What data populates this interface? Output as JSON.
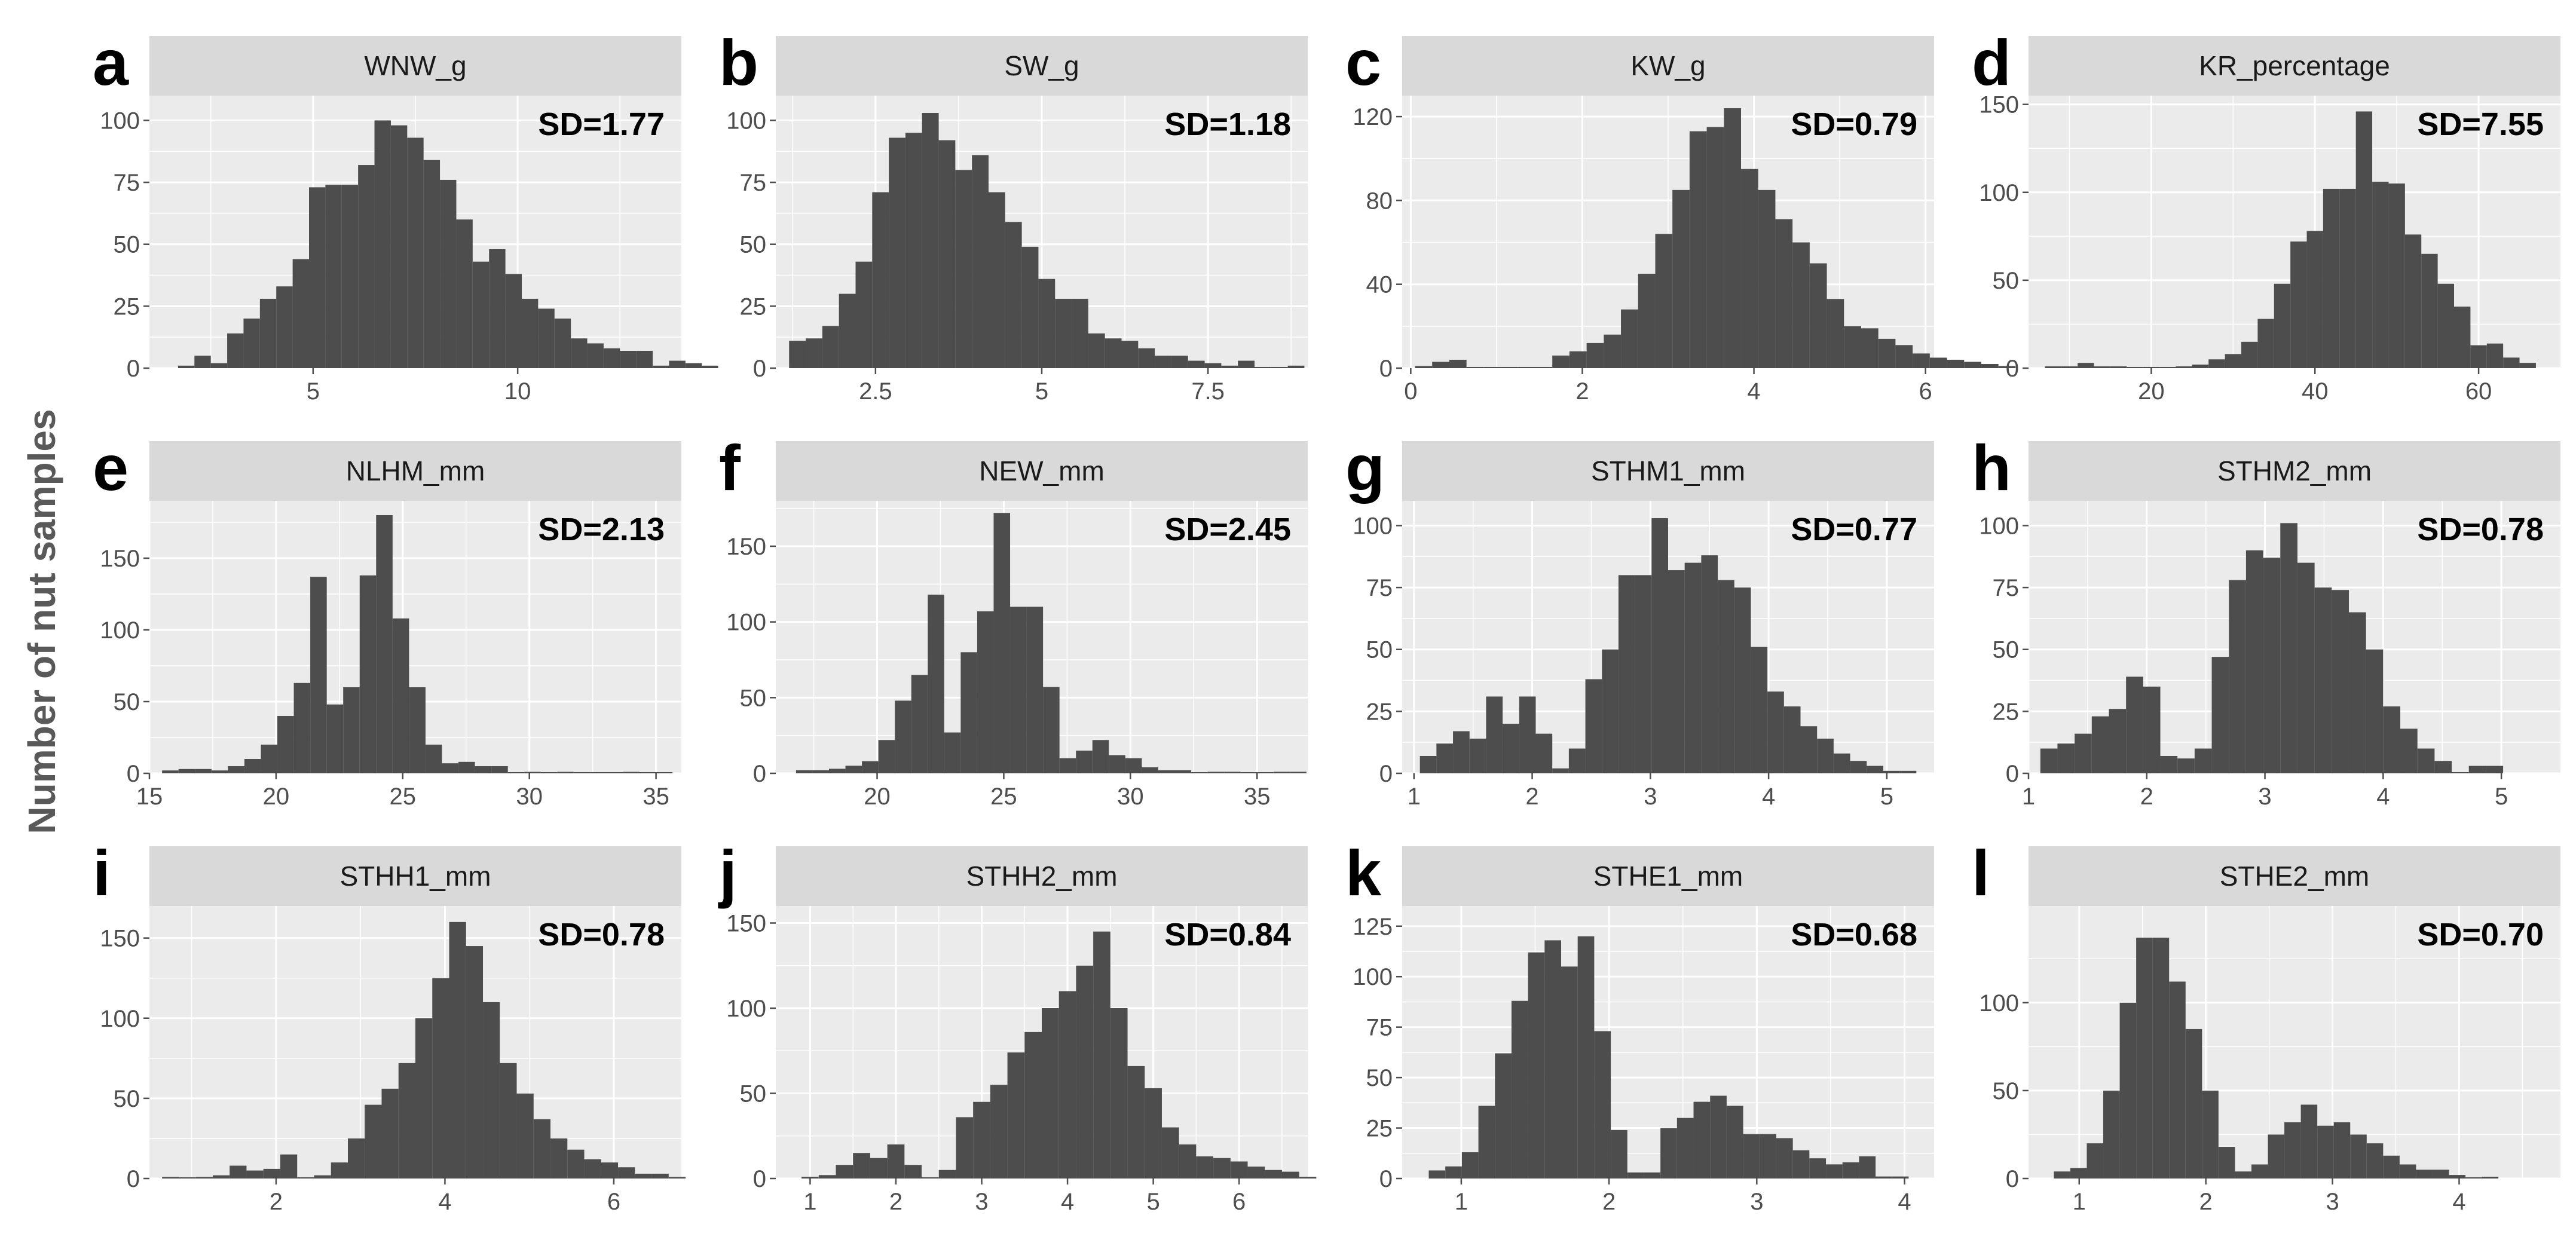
{
  "figure": {
    "ylabel": "Number of nut samples"
  },
  "colors": {
    "panel_bg": "#ebebeb",
    "strip_bg": "#d9d9d9",
    "bar": "#4d4d4d",
    "grid": "#ffffff",
    "tick": "#4d4d4d"
  },
  "chart_data": [
    {
      "type": "bar",
      "letter": "a",
      "title": "WNW_g",
      "sd_label": "SD=1.77",
      "xlim": [
        1,
        14
      ],
      "ylim": [
        0,
        110
      ],
      "xticks": [
        5,
        10
      ],
      "yticks": [
        0,
        25,
        50,
        75,
        100
      ],
      "bin_start": 1.7,
      "bin_width": 0.4,
      "counts": [
        1,
        5,
        2,
        14,
        20,
        28,
        33,
        44,
        73,
        74,
        74,
        82,
        100,
        98,
        93,
        84,
        76,
        60,
        43,
        48,
        38,
        28,
        24,
        20,
        12,
        10,
        8,
        7,
        7,
        1,
        3,
        2,
        1
      ]
    },
    {
      "type": "bar",
      "letter": "b",
      "title": "SW_g",
      "sd_label": "SD=1.18",
      "xlim": [
        1,
        9
      ],
      "ylim": [
        0,
        110
      ],
      "xticks": [
        2.5,
        5.0,
        7.5
      ],
      "yticks": [
        0,
        25,
        50,
        75,
        100
      ],
      "bin_start": 1.2,
      "bin_width": 0.25,
      "counts": [
        11,
        12,
        17,
        30,
        43,
        71,
        93,
        95,
        103,
        92,
        80,
        86,
        71,
        59,
        49,
        36,
        28,
        28,
        14,
        12,
        11,
        8,
        5,
        5,
        3,
        2,
        1,
        3,
        0,
        0,
        1
      ]
    },
    {
      "type": "bar",
      "letter": "c",
      "title": "KW_g",
      "sd_label": "SD=0.79",
      "xlim": [
        -0.1,
        6.1
      ],
      "ylim": [
        0,
        130
      ],
      "xticks": [
        0,
        2,
        4,
        6
      ],
      "yticks": [
        0,
        40,
        80,
        120
      ],
      "bin_start": 0.05,
      "bin_width": 0.2,
      "counts": [
        1,
        3,
        4,
        0,
        0,
        0,
        0,
        0,
        6,
        8,
        12,
        16,
        28,
        45,
        64,
        85,
        113,
        115,
        124,
        95,
        85,
        71,
        60,
        50,
        33,
        20,
        19,
        14,
        11,
        7,
        5,
        4,
        3,
        2,
        1
      ]
    },
    {
      "type": "bar",
      "letter": "d",
      "title": "KR_percentage",
      "sd_label": "SD=7.55",
      "xlim": [
        5,
        70
      ],
      "ylim": [
        0,
        155
      ],
      "xticks": [
        20,
        40,
        60
      ],
      "yticks": [
        0,
        50,
        100,
        150
      ],
      "bin_start": 7,
      "bin_width": 2,
      "counts": [
        1,
        1,
        3,
        1,
        1,
        0,
        0,
        0,
        1,
        2,
        5,
        8,
        15,
        28,
        48,
        72,
        78,
        102,
        102,
        146,
        106,
        105,
        76,
        65,
        48,
        35,
        13,
        14,
        6,
        3
      ]
    },
    {
      "type": "bar",
      "letter": "e",
      "title": "NLHM_mm",
      "sd_label": "SD=2.13",
      "xlim": [
        15,
        36
      ],
      "ylim": [
        0,
        190
      ],
      "xticks": [
        15,
        20,
        25,
        30,
        35
      ],
      "yticks": [
        0,
        50,
        100,
        150
      ],
      "bin_start": 15.5,
      "bin_width": 0.65,
      "counts": [
        2,
        3,
        3,
        2,
        5,
        10,
        20,
        40,
        63,
        137,
        48,
        60,
        138,
        180,
        108,
        60,
        20,
        7,
        8,
        5,
        5,
        0,
        1,
        0,
        1,
        0,
        0,
        0,
        1,
        0,
        0
      ]
    },
    {
      "type": "bar",
      "letter": "f",
      "title": "NEW_mm",
      "sd_label": "SD=2.45",
      "xlim": [
        16,
        37
      ],
      "ylim": [
        0,
        180
      ],
      "xticks": [
        20,
        25,
        30,
        35
      ],
      "yticks": [
        0,
        50,
        100,
        150
      ],
      "bin_start": 16.8,
      "bin_width": 0.65,
      "counts": [
        2,
        2,
        3,
        5,
        8,
        22,
        48,
        65,
        118,
        27,
        80,
        107,
        172,
        110,
        110,
        57,
        10,
        15,
        22,
        12,
        10,
        4,
        2,
        2,
        0,
        1,
        1,
        0,
        0,
        1,
        1
      ]
    },
    {
      "type": "bar",
      "letter": "g",
      "title": "STHM1_mm",
      "sd_label": "SD=0.77",
      "xlim": [
        0.9,
        5.4
      ],
      "ylim": [
        0,
        110
      ],
      "xticks": [
        1,
        2,
        3,
        4,
        5
      ],
      "yticks": [
        0,
        25,
        50,
        75,
        100
      ],
      "bin_start": 1.05,
      "bin_width": 0.14,
      "counts": [
        7,
        12,
        17,
        14,
        31,
        20,
        31,
        16,
        2,
        10,
        38,
        50,
        80,
        80,
        103,
        82,
        85,
        88,
        78,
        75,
        51,
        33,
        27,
        19,
        14,
        8,
        5,
        3,
        1,
        1
      ]
    },
    {
      "type": "bar",
      "letter": "h",
      "title": "STHM2_mm",
      "sd_label": "SD=0.78",
      "xlim": [
        1,
        5.5
      ],
      "ylim": [
        0,
        110
      ],
      "xticks": [
        1,
        2,
        3,
        4,
        5
      ],
      "yticks": [
        0,
        25,
        50,
        75,
        100
      ],
      "bin_start": 1.1,
      "bin_width": 0.145,
      "counts": [
        10,
        12,
        16,
        23,
        26,
        39,
        35,
        7,
        6,
        10,
        47,
        78,
        90,
        87,
        101,
        85,
        75,
        74,
        65,
        50,
        27,
        18,
        10,
        5,
        0,
        3,
        3
      ]
    },
    {
      "type": "bar",
      "letter": "i",
      "title": "STHH1_mm",
      "sd_label": "SD=0.78",
      "xlim": [
        0.5,
        6.8
      ],
      "ylim": [
        0,
        170
      ],
      "xticks": [
        2,
        4,
        6
      ],
      "yticks": [
        0,
        50,
        100,
        150
      ],
      "bin_start": 0.65,
      "bin_width": 0.2,
      "counts": [
        1,
        0,
        1,
        2,
        8,
        5,
        6,
        15,
        0,
        2,
        10,
        25,
        46,
        56,
        72,
        100,
        125,
        160,
        145,
        110,
        72,
        53,
        37,
        25,
        18,
        12,
        10,
        7,
        3,
        3,
        1
      ]
    },
    {
      "type": "bar",
      "letter": "j",
      "title": "STHH2_mm",
      "sd_label": "SD=0.84",
      "xlim": [
        0.6,
        6.8
      ],
      "ylim": [
        0,
        160
      ],
      "xticks": [
        1,
        2,
        3,
        4,
        5,
        6
      ],
      "yticks": [
        0,
        50,
        100,
        150
      ],
      "bin_start": 0.9,
      "bin_width": 0.2,
      "counts": [
        1,
        2,
        8,
        15,
        12,
        20,
        8,
        0,
        5,
        36,
        45,
        55,
        74,
        86,
        100,
        110,
        125,
        145,
        100,
        66,
        53,
        30,
        20,
        13,
        12,
        10,
        7,
        5,
        4,
        1
      ]
    },
    {
      "type": "bar",
      "letter": "k",
      "title": "STHE1_mm",
      "sd_label": "SD=0.68",
      "xlim": [
        0.6,
        4.2
      ],
      "ylim": [
        0,
        135
      ],
      "xticks": [
        1,
        2,
        3,
        4
      ],
      "yticks": [
        0,
        25,
        50,
        75,
        100,
        125
      ],
      "bin_start": 0.78,
      "bin_width": 0.112,
      "counts": [
        4,
        6,
        13,
        36,
        62,
        88,
        112,
        118,
        105,
        120,
        73,
        24,
        3,
        3,
        25,
        30,
        38,
        41,
        36,
        22,
        22,
        20,
        14,
        10,
        7,
        8,
        11,
        1,
        1
      ]
    },
    {
      "type": "bar",
      "letter": "l",
      "title": "STHE2_mm",
      "sd_label": "SD=0.70",
      "xlim": [
        0.6,
        4.8
      ],
      "ylim": [
        0,
        155
      ],
      "xticks": [
        1,
        2,
        3,
        4
      ],
      "yticks": [
        0,
        50,
        100
      ],
      "bin_start": 0.8,
      "bin_width": 0.13,
      "counts": [
        4,
        6,
        20,
        50,
        100,
        137,
        137,
        112,
        85,
        50,
        18,
        4,
        8,
        25,
        32,
        42,
        30,
        32,
        25,
        20,
        13,
        8,
        5,
        5,
        2,
        0,
        1
      ]
    }
  ]
}
